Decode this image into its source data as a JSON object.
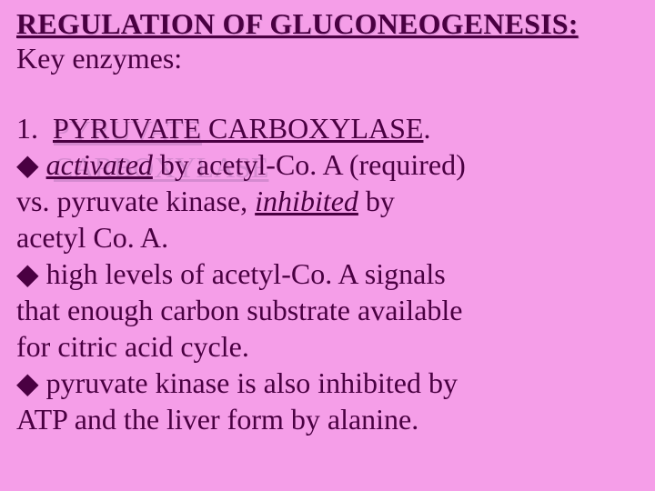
{
  "colors": {
    "background": "#f59ee8",
    "text": "#4a0042",
    "shadow": "#d58ad0"
  },
  "typography": {
    "font_family": "Times New Roman",
    "title_fontsize": 32,
    "body_fontsize": 32,
    "title_bold": true,
    "title_underline": true,
    "line_height": 1.25
  },
  "title": "REGULATION OF GLUCONEOGENESIS:",
  "subtitle": "Key enzymes:",
  "item_number": "1.",
  "enzyme_name": "PYRUVATE CARBOXYLASE",
  "enzyme_period": ".",
  "bullet_glyph": "◆",
  "bullets": {
    "b1_pre": " ",
    "b1_word_activated": "activated",
    "b1_rest_line1": " by acetyl-Co. A (required)",
    "b1_line2_pre": "vs. pyruvate kinase, ",
    "b1_word_inhibited": "inhibited",
    "b1_line2_post": " by",
    "b1_line3": "acetyl Co. A.",
    "b2_line1": " high levels of acetyl-Co. A signals",
    "b2_line2": "that enough carbon substrate available",
    "b2_line3": "for citric acid cycle.",
    "b3_line1": " pyruvate kinase is also inhibited by",
    "b3_line2": "ATP and the liver form by alanine."
  }
}
